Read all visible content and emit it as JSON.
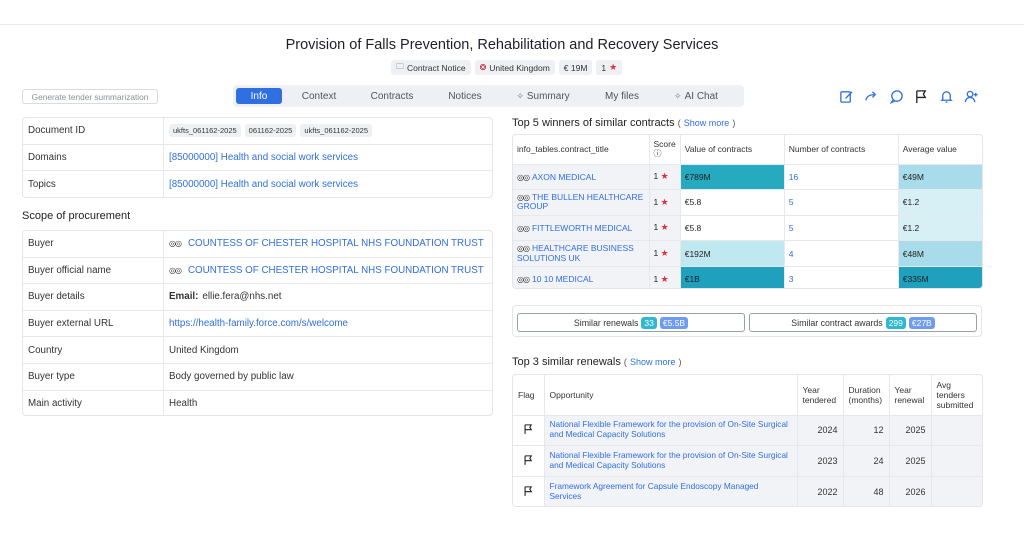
{
  "title": "Provision of Falls Prevention, Rehabilitation and Recovery Services",
  "meta": {
    "notice_type": "Contract Notice",
    "country": "United Kingdom",
    "value": "€ 19M",
    "rating": "1"
  },
  "generate_button": "Generate tender summarization",
  "tabs": [
    "Info",
    "Context",
    "Contracts",
    "Notices",
    "Summary",
    "My files",
    "AI Chat"
  ],
  "actions": [
    "edit-icon",
    "share-icon",
    "comment-icon",
    "flag-icon",
    "bell-icon",
    "add-user-icon"
  ],
  "doc_info": {
    "document_id_label": "Document ID",
    "document_ids": [
      "ukfts_061162-2025",
      "061162-2025",
      "ukfts_061162-2025"
    ],
    "domains_label": "Domains",
    "domains_value": "[85000000] Health and social work services",
    "topics_label": "Topics",
    "topics_value": "[85000000] Health and social work services"
  },
  "scope": {
    "title": "Scope of procurement",
    "rows": [
      {
        "key": "Buyer",
        "value": "COUNTESS OF CHESTER HOSPITAL NHS FOUNDATION TRUST"
      },
      {
        "key": "Buyer official name",
        "value": "COUNTESS OF CHESTER HOSPITAL NHS FOUNDATION TRUST"
      },
      {
        "key": "Buyer details",
        "value_label": "Email:",
        "value": "ellie.fera@nhs.net"
      },
      {
        "key": "Buyer external URL",
        "value": "https://health-family.force.com/s/welcome"
      },
      {
        "key": "Country",
        "value": "United Kingdom"
      },
      {
        "key": "Buyer type",
        "value": "Body governed by public law"
      },
      {
        "key": "Main activity",
        "value": "Health"
      }
    ]
  },
  "winners": {
    "title": "Top 5 winners of similar contracts",
    "show_more": "Show more",
    "headers": [
      "info_tables.contract_title",
      "Score",
      "Value of contracts",
      "Number of contracts",
      "Average value"
    ],
    "rows": [
      {
        "name": "AXON MEDICAL",
        "score": "1",
        "value": "€789M",
        "count": "16",
        "avg": "€49M",
        "value_color": "#25aabf",
        "avg_color": "#a9dcea"
      },
      {
        "name": "THE BULLEN HEALTHCARE GROUP",
        "score": "1",
        "value": "€5.8",
        "count": "5",
        "avg": "€1.2",
        "value_color": "#ffffff",
        "avg_color": "#d7f0f6"
      },
      {
        "name": "FITTLEWORTH MEDICAL",
        "score": "1",
        "value": "€5.8",
        "count": "5",
        "avg": "€1.2",
        "value_color": "#ffffff",
        "avg_color": "#d7f0f6"
      },
      {
        "name": "HEALTHCARE BUSINESS SOLUTIONS UK",
        "score": "1",
        "value": "€192M",
        "count": "4",
        "avg": "€48M",
        "value_color": "#bfe8f0",
        "avg_color": "#a9dcea"
      },
      {
        "name": "10 10 MEDICAL",
        "score": "1",
        "value": "€1B",
        "count": "3",
        "avg": "€335M",
        "value_color": "#1fa0bd",
        "avg_color": "#1fa0bd"
      }
    ]
  },
  "counts": {
    "renewals_label": "Similar renewals",
    "renewals_count": "33",
    "renewals_value": "€5.5B",
    "awards_label": "Similar contract awards",
    "awards_count": "299",
    "awards_value": "€27B"
  },
  "renewals": {
    "title": "Top 3 similar renewals",
    "show_more": "Show more",
    "headers": [
      "Flag",
      "Opportunity",
      "Year tendered",
      "Duration (months)",
      "Year renewal",
      "Avg tenders submitted"
    ],
    "rows": [
      {
        "opportunity": "National Flexible Framework for the provision of On-Site Surgical and Medical Capacity Solutions",
        "year": "2024",
        "duration": "12",
        "renewal": "2025",
        "avg": ""
      },
      {
        "opportunity": "National Flexible Framework for the provision of On-Site Surgical and Medical Capacity Solutions",
        "year": "2023",
        "duration": "24",
        "renewal": "2025",
        "avg": ""
      },
      {
        "opportunity": "Framework Agreement for Capsule Endoscopy Managed Services",
        "year": "2022",
        "duration": "48",
        "renewal": "2026",
        "avg": ""
      }
    ]
  }
}
